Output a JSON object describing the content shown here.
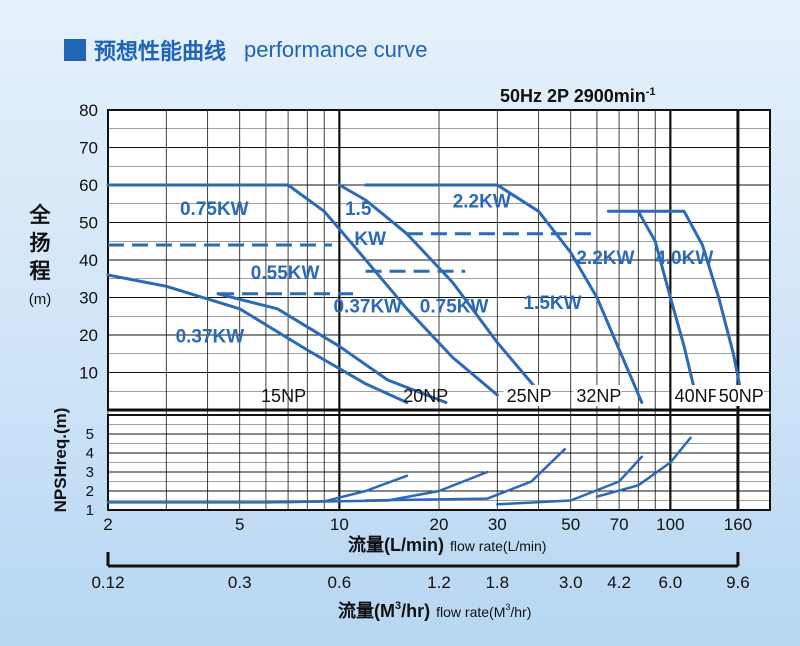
{
  "title": {
    "cn": "预想性能曲线",
    "en": "performance curve"
  },
  "spec": {
    "text": "50Hz 2P 2900min",
    "sup": "-1"
  },
  "y_axis_head": {
    "label_chars": [
      "全",
      "扬",
      "程"
    ],
    "unit": "(m)"
  },
  "y_axis_npsh": {
    "label": "NPSHreq.(m)"
  },
  "x_axis_flow": {
    "cn": "流量",
    "unit_text": "(L/min)",
    "en": "flow rate(L/min)"
  },
  "x_axis_m3": {
    "cn": "流量",
    "unit_pre": "(M",
    "unit_sup": "3",
    "unit_post": "/hr)",
    "en": "flow rate(M",
    "en_sup": "3",
    "en_post": "/hr)"
  },
  "colors": {
    "curve": "#2a6ab6",
    "grid": "#111111",
    "label": "#2a6ab6"
  },
  "chart_data": {
    "type": "line",
    "x_scale": "log",
    "head": {
      "ylabel": "全扬程(m)",
      "ylim": [
        0,
        80
      ],
      "y_ticks": [
        10,
        20,
        30,
        40,
        50,
        60,
        70,
        80
      ],
      "x_ticks": [
        2,
        5,
        10,
        20,
        30,
        50,
        70,
        100,
        160
      ],
      "series": [
        {
          "model": "15NP",
          "power": "0.37KW",
          "points": [
            [
              2,
              36
            ],
            [
              3,
              33
            ],
            [
              5,
              27
            ],
            [
              8,
              16
            ],
            [
              12,
              7
            ],
            [
              16,
              2
            ]
          ]
        },
        {
          "model": "15NP",
          "power": "0.75KW",
          "points": [
            [
              2,
              60
            ],
            [
              7,
              60
            ],
            [
              9,
              53
            ],
            [
              11,
              44
            ],
            [
              16,
              27
            ],
            [
              22,
              14
            ],
            [
              30,
              4
            ]
          ]
        },
        {
          "model": "20NP",
          "power": "0.55KW",
          "points": [
            [
              4.3,
              31
            ],
            [
              6.5,
              27
            ],
            [
              10,
              17
            ],
            [
              14,
              8
            ],
            [
              21,
              2
            ]
          ]
        },
        {
          "model": "20NP",
          "power": "1.5KW",
          "points": [
            [
              10,
              60
            ],
            [
              12,
              56
            ],
            [
              16,
              47
            ],
            [
              22,
              34
            ],
            [
              30,
              18
            ],
            [
              40,
              5
            ]
          ]
        },
        {
          "model": "25NP",
          "power": "2.2KW",
          "points": [
            [
              12,
              60
            ],
            [
              30,
              60
            ],
            [
              40,
              53
            ],
            [
              50,
              42
            ],
            [
              60,
              30
            ],
            [
              75,
              10
            ],
            [
              82,
              2
            ]
          ]
        },
        {
          "model": "32NP",
          "power": "2.2KW",
          "points": [
            [
              65,
              53
            ],
            [
              80,
              53
            ],
            [
              90,
              45
            ],
            [
              100,
              30
            ],
            [
              110,
              17
            ],
            [
              120,
              3
            ]
          ]
        },
        {
          "model": "40NP",
          "power": "4.0KW",
          "points": [
            [
              80,
              53
            ],
            [
              110,
              53
            ],
            [
              125,
              44
            ],
            [
              140,
              30
            ],
            [
              155,
              15
            ],
            [
              165,
              3
            ]
          ]
        }
      ],
      "dashed_refs": [
        {
          "y": 44,
          "x_from": 2,
          "x_to": 9.5
        },
        {
          "y": 31,
          "x_from": 4.3,
          "x_to": 11
        },
        {
          "y": 47,
          "x_from": 16,
          "x_to": 60
        },
        {
          "y": 37,
          "x_from": 12,
          "x_to": 24
        }
      ],
      "labels": [
        {
          "text": "0.75KW",
          "x": 3.3,
          "y": 52
        },
        {
          "text": "0.55KW",
          "x": 5.4,
          "y": 35
        },
        {
          "text": "0.37KW",
          "x": 3.2,
          "y": 18
        },
        {
          "text": "1.5",
          "x": 10.4,
          "y": 52
        },
        {
          "text": "KW",
          "x": 11.1,
          "y": 44
        },
        {
          "text": "0.37KW",
          "x": 9.6,
          "y": 26
        },
        {
          "text": "0.75KW",
          "x": 17.5,
          "y": 26
        },
        {
          "text": "2.2KW",
          "x": 22,
          "y": 54
        },
        {
          "text": "1.5KW",
          "x": 36,
          "y": 27
        },
        {
          "text": "2.2KW",
          "x": 52,
          "y": 39
        },
        {
          "text": "4.0KW",
          "x": 90,
          "y": 39
        }
      ],
      "model_labels": [
        {
          "text": "15NP",
          "x": 5.8
        },
        {
          "text": "20NP",
          "x": 15.6
        },
        {
          "text": "25NP",
          "x": 32
        },
        {
          "text": "32NP",
          "x": 52
        },
        {
          "text": "40NP",
          "x": 103
        },
        {
          "text": "50NP",
          "x": 140
        }
      ]
    },
    "npsh": {
      "ylabel": "NPSHreq.(m)",
      "ylim": [
        1,
        6
      ],
      "y_ticks": [
        1,
        2,
        3,
        4,
        5
      ],
      "series": [
        {
          "model": "15NP",
          "points": [
            [
              2,
              1.4
            ],
            [
              6,
              1.4
            ],
            [
              9,
              1.45
            ],
            [
              12,
              2
            ],
            [
              16,
              2.8
            ]
          ]
        },
        {
          "model": "20NP",
          "points": [
            [
              6,
              1.4
            ],
            [
              14,
              1.5
            ],
            [
              20,
              2
            ],
            [
              28,
              3
            ]
          ]
        },
        {
          "model": "25NP",
          "points": [
            [
              12,
              1.5
            ],
            [
              28,
              1.6
            ],
            [
              38,
              2.5
            ],
            [
              48,
              4.2
            ]
          ]
        },
        {
          "model": "32NP",
          "points": [
            [
              30,
              1.3
            ],
            [
              50,
              1.5
            ],
            [
              70,
              2.5
            ],
            [
              82,
              3.8
            ]
          ]
        },
        {
          "model": "40NP",
          "points": [
            [
              60,
              1.7
            ],
            [
              80,
              2.3
            ],
            [
              100,
              3.5
            ],
            [
              115,
              4.8
            ]
          ]
        }
      ]
    },
    "flow_axis_m3h": {
      "ticks": [
        {
          "x": 2,
          "label": "0.12"
        },
        {
          "x": 5,
          "label": "0.3"
        },
        {
          "x": 10,
          "label": "0.6"
        },
        {
          "x": 20,
          "label": "1.2"
        },
        {
          "x": 30,
          "label": "1.8"
        },
        {
          "x": 50,
          "label": "3.0"
        },
        {
          "x": 70,
          "label": "4.2"
        },
        {
          "x": 100,
          "label": "6.0"
        },
        {
          "x": 160,
          "label": "9.6"
        }
      ]
    }
  }
}
